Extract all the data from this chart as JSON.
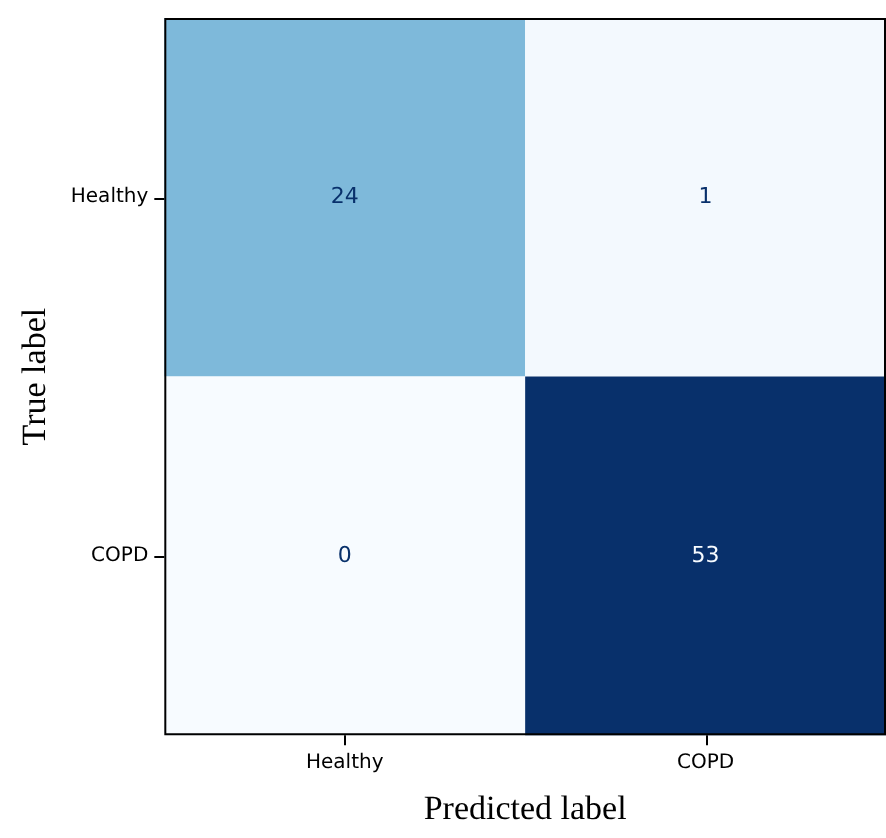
{
  "chart_data": {
    "type": "heatmap",
    "xlabel": "Predicted label",
    "ylabel": "True label",
    "categories": [
      "Healthy",
      "COPD"
    ],
    "y_categories": [
      "Healthy",
      "COPD"
    ],
    "cells": [
      [
        24,
        1
      ],
      [
        0,
        53
      ]
    ],
    "data_labels": true
  }
}
